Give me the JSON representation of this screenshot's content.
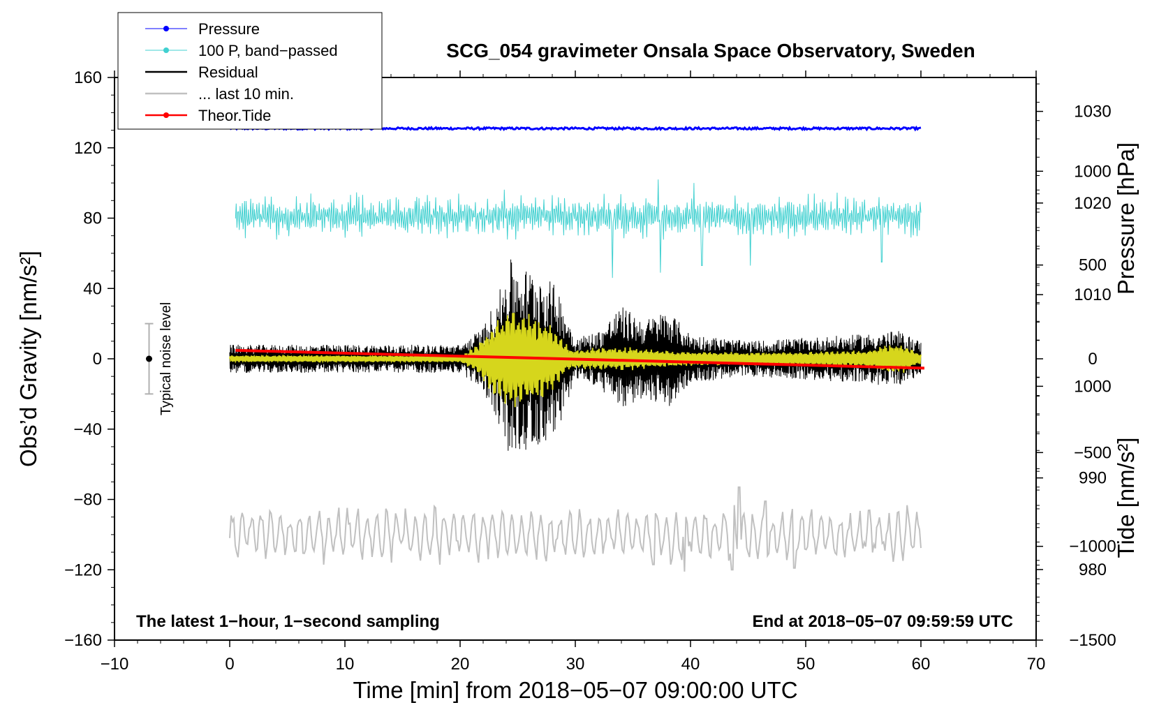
{
  "chart_data": {
    "type": "line",
    "title": "SCG_054 gravimeter Onsala Space Observatory, Sweden",
    "xlabel": "Time [min] from 2018−05−07 09:00:00 UTC",
    "ylabel_left": "Obs’d Gravity [nm/s²]",
    "ylabel_right_top": "Pressure [hPa]",
    "ylabel_right_bottom": "Tide [nm/s²]",
    "xlim": [
      -10,
      70
    ],
    "ylim_left": [
      -160,
      160
    ],
    "pressure_axis_range": [
      972.3,
      1033.7
    ],
    "tide_axis_range": [
      -1500,
      1500
    ],
    "x_ticks": [
      -10,
      0,
      10,
      20,
      30,
      40,
      50,
      60,
      70
    ],
    "x_tick_labels": [
      "−10",
      "0",
      "10",
      "20",
      "30",
      "40",
      "50",
      "60",
      "70"
    ],
    "y_left_ticks": [
      -160,
      -120,
      -80,
      -40,
      0,
      40,
      80,
      120,
      160
    ],
    "y_left_tick_labels": [
      "−160",
      "−120",
      "−80",
      "−40",
      "0",
      "40",
      "80",
      "120",
      "160"
    ],
    "pressure_ticks": [
      980,
      990,
      1000,
      1010,
      1020,
      1030
    ],
    "pressure_tick_labels": [
      "980",
      "990",
      "1000",
      "1010",
      "1020",
      "1030"
    ],
    "tide_ticks": [
      -1500,
      -1000,
      -500,
      0,
      500,
      1000
    ],
    "tide_tick_labels": [
      "−1500",
      "−1000",
      "−500",
      "0",
      "500",
      "1000"
    ],
    "annotations": {
      "left": "The latest 1−hour, 1−second sampling",
      "right": "End at 2018−05−07 09:59:59 UTC"
    },
    "noise_bar": {
      "label": "Typical noise level",
      "x": -7,
      "center": 0,
      "half_range": 20
    },
    "legend": [
      {
        "label": "Pressure",
        "color": "#0000ff",
        "marker": true
      },
      {
        "label": "100 P, band−passed",
        "color": "#40d0d0",
        "marker": true
      },
      {
        "label": "Residual",
        "color": "#000000",
        "marker": false
      },
      {
        "label": "... last 10 min.",
        "color": "#c0c0c0",
        "marker": false
      },
      {
        "label": "Theor.Tide",
        "color": "#ff0000",
        "marker": true
      }
    ],
    "series": [
      {
        "name": "Pressure",
        "color": "#0000ff",
        "axis": "left",
        "x_range": [
          0,
          60
        ],
        "baseline": 131,
        "amplitude": 0.6,
        "period_min": 0.4
      },
      {
        "name": "100 P, band−passed",
        "color": "#40d0d0",
        "axis": "left",
        "x_range": [
          0.5,
          60
        ],
        "baseline": 81,
        "amplitude": 7,
        "spikes": [
          {
            "x": 33.2,
            "y": 46
          },
          {
            "x": 37.4,
            "y": 49
          },
          {
            "x": 41.0,
            "y": 53
          },
          {
            "x": 45.2,
            "y": 53
          },
          {
            "x": 37.2,
            "y": 102
          },
          {
            "x": 40.3,
            "y": 100
          },
          {
            "x": 56.6,
            "y": 55
          }
        ]
      },
      {
        "name": "Residual",
        "color": "#000000",
        "axis": "left",
        "x_range": [
          0,
          60
        ],
        "baseline": 0,
        "envelope": [
          [
            0,
            8
          ],
          [
            20,
            8
          ],
          [
            22,
            18
          ],
          [
            23.5,
            40
          ],
          [
            24.3,
            57
          ],
          [
            25.5,
            52
          ],
          [
            27,
            50
          ],
          [
            28.5,
            40
          ],
          [
            30,
            12
          ],
          [
            32,
            16
          ],
          [
            34,
            30
          ],
          [
            36,
            22
          ],
          [
            38,
            28
          ],
          [
            40,
            14
          ],
          [
            45,
            10
          ],
          [
            50,
            12
          ],
          [
            55,
            14
          ],
          [
            58,
            16
          ],
          [
            60,
            10
          ]
        ]
      },
      {
        "name": "Residual (filtered)",
        "color": "#d6d61c",
        "axis": "left",
        "x_range": [
          0,
          60
        ],
        "baseline": 0,
        "envelope": [
          [
            0,
            2
          ],
          [
            20,
            2
          ],
          [
            21.5,
            8
          ],
          [
            23,
            22
          ],
          [
            24.3,
            30
          ],
          [
            26,
            26
          ],
          [
            28,
            20
          ],
          [
            29.5,
            6
          ],
          [
            34,
            7
          ],
          [
            40,
            4
          ],
          [
            50,
            4
          ],
          [
            55,
            5
          ],
          [
            58,
            10
          ],
          [
            60,
            3
          ]
        ]
      },
      {
        "name": "... last 10 min.",
        "color": "#c0c0c0",
        "axis": "left",
        "x_range": [
          0,
          60
        ],
        "baseline": -100,
        "amplitude": 8,
        "peaks": [
          {
            "x": 44.2,
            "y": -73
          },
          {
            "x": 43.6,
            "y": -120
          },
          {
            "x": 39.5,
            "y": -121
          },
          {
            "x": 36.8,
            "y": -117
          },
          {
            "x": 46.5,
            "y": -81
          },
          {
            "x": 49,
            "y": -119
          }
        ]
      },
      {
        "name": "Theor.Tide",
        "color": "#ff0000",
        "axis": "tide",
        "x": [
          0.5,
          60.3
        ],
        "values": [
          45,
          -50
        ]
      }
    ]
  }
}
